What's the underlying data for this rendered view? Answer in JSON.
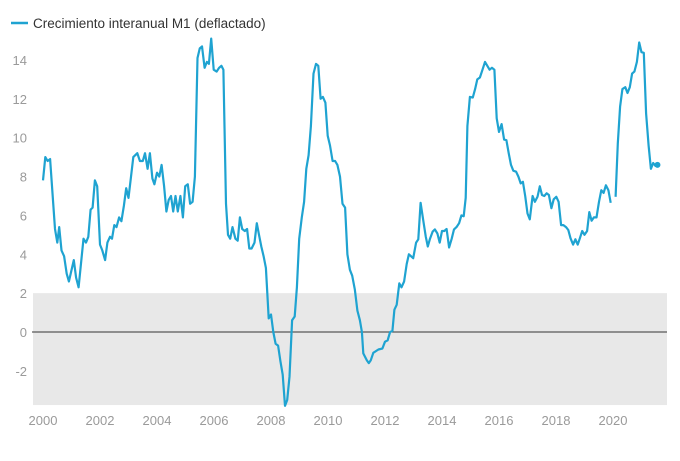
{
  "chart_data": {
    "type": "line",
    "title": "",
    "xlabel": "",
    "ylabel": "",
    "legend": {
      "position": "top-left",
      "entries": [
        "Crecimiento interanual M1 (deflactado)"
      ]
    },
    "xlim": [
      2000,
      2021.75
    ],
    "ylim": [
      -3.76,
      15.2
    ],
    "x_ticks": [
      "2000",
      "2002",
      "2004",
      "2006",
      "2008",
      "2010",
      "2012",
      "2014",
      "2016",
      "2018",
      "2020"
    ],
    "y_ticks": [
      "-2",
      "0",
      "2",
      "4",
      "6",
      "8",
      "10",
      "12",
      "14"
    ],
    "shaded_band": {
      "from": -3.76,
      "to": 2,
      "color": "#e8e8e8"
    },
    "reference_line": {
      "y": 0,
      "color": "#333333"
    },
    "colors": {
      "series": "#1fa3d1"
    },
    "series": [
      {
        "name": "Crecimiento interanual M1 (deflactado)",
        "points": [
          [
            2000.0,
            7.8
          ],
          [
            2000.08,
            9.0
          ],
          [
            2000.16,
            8.8
          ],
          [
            2000.25,
            8.9
          ],
          [
            2000.42,
            5.3
          ],
          [
            2000.5,
            4.6
          ],
          [
            2000.57,
            5.4
          ],
          [
            2000.65,
            4.2
          ],
          [
            2000.74,
            3.9
          ],
          [
            2000.83,
            3.0
          ],
          [
            2000.91,
            2.6
          ],
          [
            2001.08,
            3.7
          ],
          [
            2001.16,
            2.8
          ],
          [
            2001.25,
            2.3
          ],
          [
            2001.42,
            4.8
          ],
          [
            2001.51,
            4.6
          ],
          [
            2001.59,
            4.9
          ],
          [
            2001.67,
            6.3
          ],
          [
            2001.74,
            6.4
          ],
          [
            2001.82,
            7.8
          ],
          [
            2001.9,
            7.5
          ],
          [
            2002.0,
            4.5
          ],
          [
            2002.08,
            4.2
          ],
          [
            2002.18,
            3.7
          ],
          [
            2002.26,
            4.6
          ],
          [
            2002.35,
            4.9
          ],
          [
            2002.42,
            4.8
          ],
          [
            2002.5,
            5.5
          ],
          [
            2002.58,
            5.4
          ],
          [
            2002.67,
            5.9
          ],
          [
            2002.75,
            5.7
          ],
          [
            2002.84,
            6.5
          ],
          [
            2002.92,
            7.4
          ],
          [
            2003.0,
            6.9
          ],
          [
            2003.08,
            7.9
          ],
          [
            2003.17,
            9.0
          ],
          [
            2003.31,
            9.2
          ],
          [
            2003.4,
            8.8
          ],
          [
            2003.5,
            8.8
          ],
          [
            2003.58,
            9.2
          ],
          [
            2003.67,
            8.4
          ],
          [
            2003.75,
            9.2
          ],
          [
            2003.84,
            7.9
          ],
          [
            2003.91,
            7.6
          ],
          [
            2004.0,
            8.2
          ],
          [
            2004.08,
            8.0
          ],
          [
            2004.16,
            8.6
          ],
          [
            2004.25,
            7.5
          ],
          [
            2004.33,
            6.2
          ],
          [
            2004.41,
            6.8
          ],
          [
            2004.49,
            7.0
          ],
          [
            2004.57,
            6.2
          ],
          [
            2004.65,
            7.0
          ],
          [
            2004.73,
            6.2
          ],
          [
            2004.82,
            7.0
          ],
          [
            2004.91,
            5.9
          ],
          [
            2004.99,
            7.5
          ],
          [
            2005.08,
            7.6
          ],
          [
            2005.16,
            6.6
          ],
          [
            2005.25,
            6.7
          ],
          [
            2005.33,
            8.0
          ],
          [
            2005.42,
            14.1
          ],
          [
            2005.5,
            14.6
          ],
          [
            2005.58,
            14.7
          ],
          [
            2005.67,
            13.6
          ],
          [
            2005.75,
            13.9
          ],
          [
            2005.82,
            13.8
          ],
          [
            2005.9,
            15.1
          ],
          [
            2005.99,
            13.5
          ],
          [
            2006.09,
            13.4
          ],
          [
            2006.18,
            13.6
          ],
          [
            2006.26,
            13.7
          ],
          [
            2006.33,
            13.5
          ],
          [
            2006.42,
            6.6
          ],
          [
            2006.49,
            5.0
          ],
          [
            2006.57,
            4.8
          ],
          [
            2006.65,
            5.4
          ],
          [
            2006.75,
            4.8
          ],
          [
            2006.83,
            4.7
          ],
          [
            2006.91,
            5.9
          ],
          [
            2006.99,
            5.3
          ],
          [
            2007.08,
            5.2
          ],
          [
            2007.16,
            5.3
          ],
          [
            2007.24,
            4.3
          ],
          [
            2007.32,
            4.3
          ],
          [
            2007.42,
            4.6
          ],
          [
            2007.5,
            5.6
          ],
          [
            2007.58,
            5.0
          ],
          [
            2007.66,
            4.4
          ],
          [
            2007.74,
            3.9
          ],
          [
            2007.82,
            3.3
          ],
          [
            2007.92,
            0.7
          ],
          [
            2008.0,
            0.9
          ],
          [
            2008.08,
            0.0
          ],
          [
            2008.16,
            -0.6
          ],
          [
            2008.25,
            -0.7
          ],
          [
            2008.33,
            -1.5
          ],
          [
            2008.41,
            -2.2
          ],
          [
            2008.49,
            -3.8
          ],
          [
            2008.57,
            -3.5
          ],
          [
            2008.65,
            -2.3
          ],
          [
            2008.74,
            0.6
          ],
          [
            2008.83,
            0.8
          ],
          [
            2008.91,
            2.3
          ],
          [
            2008.99,
            4.8
          ],
          [
            2009.08,
            5.9
          ],
          [
            2009.16,
            6.7
          ],
          [
            2009.24,
            8.4
          ],
          [
            2009.32,
            9.1
          ],
          [
            2009.4,
            10.6
          ],
          [
            2009.49,
            13.3
          ],
          [
            2009.58,
            13.8
          ],
          [
            2009.66,
            13.7
          ],
          [
            2009.74,
            12.0
          ],
          [
            2009.82,
            12.1
          ],
          [
            2009.91,
            11.8
          ],
          [
            2009.99,
            10.1
          ],
          [
            2010.07,
            9.6
          ],
          [
            2010.16,
            8.8
          ],
          [
            2010.25,
            8.8
          ],
          [
            2010.33,
            8.6
          ],
          [
            2010.42,
            8.0
          ],
          [
            2010.51,
            6.6
          ],
          [
            2010.6,
            6.4
          ],
          [
            2010.68,
            4.0
          ],
          [
            2010.77,
            3.2
          ],
          [
            2010.85,
            2.9
          ],
          [
            2010.94,
            2.2
          ],
          [
            2011.03,
            1.1
          ],
          [
            2011.12,
            0.6
          ],
          [
            2011.19,
            0.0
          ],
          [
            2011.24,
            -1.1
          ],
          [
            2011.36,
            -1.45
          ],
          [
            2011.43,
            -1.6
          ],
          [
            2011.5,
            -1.45
          ],
          [
            2011.59,
            -1.07
          ],
          [
            2011.77,
            -0.9
          ],
          [
            2011.91,
            -0.85
          ],
          [
            2012.0,
            -0.5
          ],
          [
            2012.09,
            -0.43
          ],
          [
            2012.18,
            0.0
          ],
          [
            2012.26,
            0.05
          ],
          [
            2012.33,
            1.15
          ],
          [
            2012.41,
            1.4
          ],
          [
            2012.5,
            2.5
          ],
          [
            2012.58,
            2.3
          ],
          [
            2012.67,
            2.6
          ],
          [
            2012.76,
            3.5
          ],
          [
            2012.84,
            4.0
          ],
          [
            2012.99,
            3.8
          ],
          [
            2013.09,
            4.6
          ],
          [
            2013.17,
            4.77
          ],
          [
            2013.25,
            6.65
          ],
          [
            2013.35,
            5.66
          ],
          [
            2013.43,
            4.9
          ],
          [
            2013.5,
            4.4
          ],
          [
            2013.58,
            4.8
          ],
          [
            2013.67,
            5.16
          ],
          [
            2013.75,
            5.28
          ],
          [
            2013.84,
            5.07
          ],
          [
            2013.92,
            4.6
          ],
          [
            2014.0,
            5.2
          ],
          [
            2014.08,
            5.2
          ],
          [
            2014.16,
            5.3
          ],
          [
            2014.25,
            4.35
          ],
          [
            2014.34,
            4.8
          ],
          [
            2014.42,
            5.28
          ],
          [
            2014.51,
            5.4
          ],
          [
            2014.6,
            5.6
          ],
          [
            2014.68,
            6.0
          ],
          [
            2014.76,
            5.96
          ],
          [
            2014.83,
            6.9
          ],
          [
            2014.89,
            10.6
          ],
          [
            2014.98,
            12.1
          ],
          [
            2015.08,
            12.07
          ],
          [
            2015.16,
            12.5
          ],
          [
            2015.24,
            13.0
          ],
          [
            2015.33,
            13.1
          ],
          [
            2015.42,
            13.5
          ],
          [
            2015.51,
            13.9
          ],
          [
            2015.59,
            13.7
          ],
          [
            2015.67,
            13.5
          ],
          [
            2015.75,
            13.6
          ],
          [
            2015.84,
            13.5
          ],
          [
            2015.92,
            11.0
          ],
          [
            2016.0,
            10.3
          ],
          [
            2016.09,
            10.7
          ],
          [
            2016.18,
            9.9
          ],
          [
            2016.26,
            9.87
          ],
          [
            2016.34,
            9.2
          ],
          [
            2016.42,
            8.6
          ],
          [
            2016.5,
            8.3
          ],
          [
            2016.6,
            8.25
          ],
          [
            2016.68,
            8.0
          ],
          [
            2016.76,
            7.65
          ],
          [
            2016.84,
            7.73
          ],
          [
            2016.92,
            7.0
          ],
          [
            2017.0,
            6.1
          ],
          [
            2017.08,
            5.8
          ],
          [
            2017.18,
            7.0
          ],
          [
            2017.26,
            6.7
          ],
          [
            2017.35,
            6.96
          ],
          [
            2017.43,
            7.5
          ],
          [
            2017.51,
            7.05
          ],
          [
            2017.59,
            7.0
          ],
          [
            2017.67,
            7.14
          ],
          [
            2017.75,
            7.05
          ],
          [
            2017.84,
            6.37
          ],
          [
            2017.92,
            6.83
          ],
          [
            2018.01,
            6.96
          ],
          [
            2018.09,
            6.7
          ],
          [
            2018.18,
            5.5
          ],
          [
            2018.26,
            5.5
          ],
          [
            2018.35,
            5.4
          ],
          [
            2018.43,
            5.25
          ],
          [
            2018.51,
            4.83
          ],
          [
            2018.6,
            4.5
          ],
          [
            2018.68,
            4.77
          ],
          [
            2018.76,
            4.5
          ],
          [
            2018.84,
            4.83
          ],
          [
            2018.92,
            5.2
          ],
          [
            2019.0,
            5.0
          ],
          [
            2019.09,
            5.2
          ],
          [
            2019.17,
            6.17
          ],
          [
            2019.25,
            5.73
          ],
          [
            2019.33,
            5.9
          ],
          [
            2019.42,
            5.9
          ],
          [
            2019.51,
            6.7
          ],
          [
            2019.59,
            7.3
          ],
          [
            2019.67,
            7.16
          ],
          [
            2019.75,
            7.55
          ],
          [
            2019.84,
            7.3
          ],
          [
            2019.92,
            6.65
          ],
          null,
          [
            2020.09,
            6.96
          ],
          [
            2020.17,
            9.7
          ],
          [
            2020.25,
            11.6
          ],
          [
            2020.33,
            12.5
          ],
          [
            2020.43,
            12.6
          ],
          [
            2020.51,
            12.3
          ],
          [
            2020.59,
            12.6
          ],
          [
            2020.67,
            13.3
          ],
          [
            2020.75,
            13.4
          ],
          [
            2020.84,
            13.9
          ],
          [
            2020.92,
            14.9
          ],
          [
            2021.0,
            14.4
          ],
          [
            2021.08,
            14.37
          ],
          [
            2021.16,
            11.25
          ],
          [
            2021.25,
            9.6
          ],
          [
            2021.33,
            8.4
          ],
          [
            2021.41,
            8.7
          ],
          [
            2021.49,
            8.55
          ],
          [
            2021.56,
            8.6
          ]
        ]
      }
    ]
  }
}
